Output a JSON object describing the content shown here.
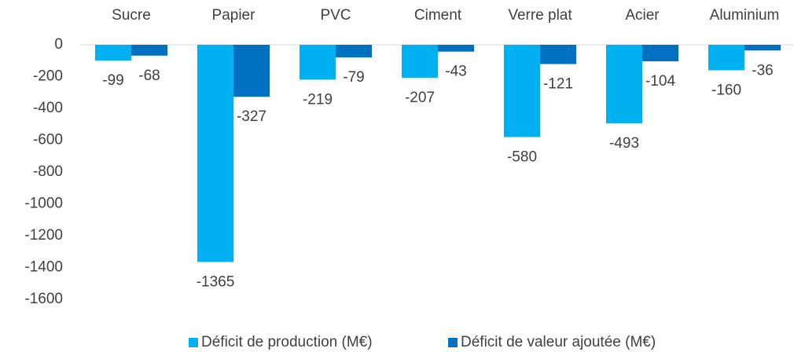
{
  "chart_data": {
    "type": "bar",
    "categories": [
      "Sucre",
      "Papier",
      "PVC",
      "Ciment",
      "Verre plat",
      "Acier",
      "Aluminium"
    ],
    "series": [
      {
        "name": "Déficit de production (M€)",
        "color": "#00b0f0",
        "values": [
          -99,
          -1365,
          -219,
          -207,
          -580,
          -493,
          -160
        ]
      },
      {
        "name": "Déficit de valeur ajoutée (M€)",
        "color": "#0070c0",
        "values": [
          -68,
          -327,
          -79,
          -43,
          -121,
          -104,
          -36
        ]
      }
    ],
    "ylim": [
      -1600,
      0
    ],
    "yticks": [
      0,
      -200,
      -400,
      -600,
      -800,
      -1000,
      -1200,
      -1400,
      -1600
    ],
    "legend": "bottom"
  }
}
